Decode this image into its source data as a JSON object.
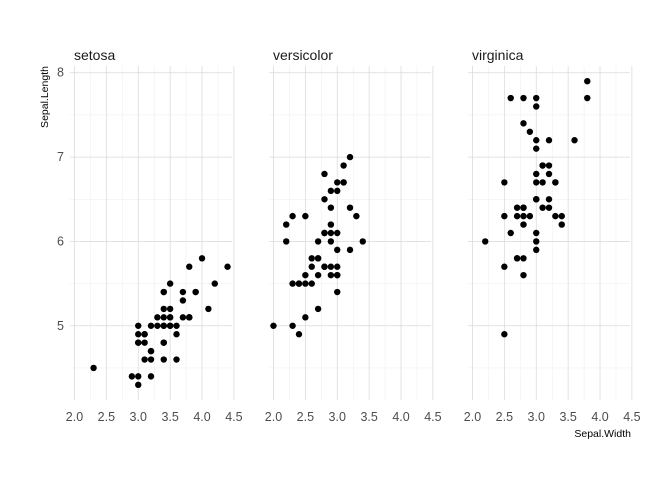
{
  "chart_data": {
    "type": "scatter",
    "facet_by": "Species",
    "xlabel": "Sepal.Width",
    "ylabel": "Sepal.Length",
    "xlim": [
      1.93,
      4.47
    ],
    "ylim": [
      4.12,
      8.08
    ],
    "x_ticks": [
      2.0,
      2.5,
      3.0,
      3.5,
      4.0,
      4.5
    ],
    "x_tick_labels": [
      "2.0",
      "2.5",
      "3.0",
      "3.5",
      "4.0",
      "4.5"
    ],
    "y_ticks": [
      5,
      6,
      7,
      8
    ],
    "y_tick_labels": [
      "5",
      "6",
      "7",
      "8"
    ],
    "grid": true,
    "point_color": "#000000",
    "panels": [
      {
        "strip": "setosa",
        "points": [
          [
            3.5,
            5.1
          ],
          [
            3.0,
            4.9
          ],
          [
            3.2,
            4.7
          ],
          [
            3.1,
            4.6
          ],
          [
            3.6,
            5.0
          ],
          [
            3.9,
            5.4
          ],
          [
            3.4,
            4.6
          ],
          [
            3.4,
            5.0
          ],
          [
            2.9,
            4.4
          ],
          [
            3.1,
            4.9
          ],
          [
            3.7,
            5.4
          ],
          [
            3.4,
            4.8
          ],
          [
            3.0,
            4.8
          ],
          [
            3.0,
            4.3
          ],
          [
            4.0,
            5.8
          ],
          [
            4.4,
            5.7
          ],
          [
            3.9,
            5.4
          ],
          [
            3.5,
            5.1
          ],
          [
            3.8,
            5.7
          ],
          [
            3.8,
            5.1
          ],
          [
            3.4,
            5.4
          ],
          [
            3.7,
            5.1
          ],
          [
            3.6,
            4.6
          ],
          [
            3.3,
            5.1
          ],
          [
            3.4,
            4.8
          ],
          [
            3.0,
            5.0
          ],
          [
            3.4,
            5.0
          ],
          [
            3.5,
            5.2
          ],
          [
            3.4,
            5.2
          ],
          [
            3.2,
            4.7
          ],
          [
            3.1,
            4.8
          ],
          [
            3.4,
            5.4
          ],
          [
            4.1,
            5.2
          ],
          [
            4.2,
            5.5
          ],
          [
            3.1,
            4.9
          ],
          [
            3.2,
            5.0
          ],
          [
            3.5,
            5.5
          ],
          [
            3.6,
            4.9
          ],
          [
            3.0,
            4.4
          ],
          [
            3.4,
            5.1
          ],
          [
            3.5,
            5.0
          ],
          [
            2.3,
            4.5
          ],
          [
            3.2,
            4.4
          ],
          [
            3.5,
            5.0
          ],
          [
            3.8,
            5.1
          ],
          [
            3.0,
            4.8
          ],
          [
            3.8,
            5.1
          ],
          [
            3.2,
            4.6
          ],
          [
            3.7,
            5.3
          ],
          [
            3.3,
            5.0
          ]
        ]
      },
      {
        "strip": "versicolor",
        "points": [
          [
            3.2,
            7.0
          ],
          [
            3.2,
            6.4
          ],
          [
            3.1,
            6.9
          ],
          [
            2.3,
            5.5
          ],
          [
            2.8,
            6.5
          ],
          [
            2.8,
            5.7
          ],
          [
            3.3,
            6.3
          ],
          [
            2.4,
            4.9
          ],
          [
            2.9,
            6.6
          ],
          [
            2.7,
            5.2
          ],
          [
            2.0,
            5.0
          ],
          [
            3.0,
            5.9
          ],
          [
            2.2,
            6.0
          ],
          [
            2.9,
            6.1
          ],
          [
            2.9,
            5.6
          ],
          [
            3.1,
            6.7
          ],
          [
            3.0,
            5.6
          ],
          [
            2.7,
            5.8
          ],
          [
            2.2,
            6.2
          ],
          [
            2.5,
            5.6
          ],
          [
            3.2,
            5.9
          ],
          [
            2.8,
            6.1
          ],
          [
            2.5,
            6.3
          ],
          [
            2.8,
            6.1
          ],
          [
            2.9,
            6.4
          ],
          [
            3.0,
            6.6
          ],
          [
            2.8,
            6.8
          ],
          [
            3.0,
            6.7
          ],
          [
            2.9,
            6.0
          ],
          [
            2.6,
            5.7
          ],
          [
            2.4,
            5.5
          ],
          [
            2.4,
            5.5
          ],
          [
            2.7,
            5.8
          ],
          [
            2.7,
            6.0
          ],
          [
            3.0,
            5.4
          ],
          [
            3.4,
            6.0
          ],
          [
            3.1,
            6.7
          ],
          [
            2.3,
            6.3
          ],
          [
            3.0,
            5.6
          ],
          [
            2.5,
            5.5
          ],
          [
            2.6,
            5.5
          ],
          [
            3.0,
            6.1
          ],
          [
            2.6,
            5.8
          ],
          [
            2.3,
            5.0
          ],
          [
            2.7,
            5.6
          ],
          [
            3.0,
            5.7
          ],
          [
            2.9,
            5.7
          ],
          [
            2.9,
            6.2
          ],
          [
            2.5,
            5.1
          ],
          [
            2.8,
            5.7
          ]
        ]
      },
      {
        "strip": "virginica",
        "points": [
          [
            3.3,
            6.3
          ],
          [
            2.7,
            5.8
          ],
          [
            3.0,
            7.1
          ],
          [
            2.9,
            6.3
          ],
          [
            3.0,
            6.5
          ],
          [
            3.0,
            7.6
          ],
          [
            2.5,
            4.9
          ],
          [
            2.9,
            7.3
          ],
          [
            2.5,
            6.7
          ],
          [
            3.6,
            7.2
          ],
          [
            3.2,
            6.5
          ],
          [
            2.7,
            6.4
          ],
          [
            3.0,
            6.8
          ],
          [
            2.5,
            5.7
          ],
          [
            2.8,
            5.8
          ],
          [
            3.2,
            6.4
          ],
          [
            3.0,
            6.5
          ],
          [
            3.8,
            7.7
          ],
          [
            2.6,
            7.7
          ],
          [
            2.2,
            6.0
          ],
          [
            3.2,
            6.9
          ],
          [
            2.8,
            5.6
          ],
          [
            2.8,
            7.7
          ],
          [
            2.7,
            6.3
          ],
          [
            3.3,
            6.7
          ],
          [
            3.2,
            7.2
          ],
          [
            2.8,
            6.2
          ],
          [
            3.0,
            6.1
          ],
          [
            2.8,
            6.4
          ],
          [
            3.0,
            7.2
          ],
          [
            2.8,
            7.4
          ],
          [
            3.8,
            7.9
          ],
          [
            2.8,
            6.4
          ],
          [
            2.8,
            6.3
          ],
          [
            2.6,
            6.1
          ],
          [
            3.0,
            7.7
          ],
          [
            3.4,
            6.3
          ],
          [
            3.1,
            6.4
          ],
          [
            3.0,
            6.0
          ],
          [
            3.1,
            6.9
          ],
          [
            3.1,
            6.7
          ],
          [
            3.1,
            6.9
          ],
          [
            2.7,
            5.8
          ],
          [
            3.2,
            6.8
          ],
          [
            3.3,
            6.7
          ],
          [
            3.0,
            6.7
          ],
          [
            2.5,
            6.3
          ],
          [
            3.0,
            6.5
          ],
          [
            3.4,
            6.2
          ],
          [
            3.0,
            5.9
          ]
        ]
      }
    ]
  }
}
